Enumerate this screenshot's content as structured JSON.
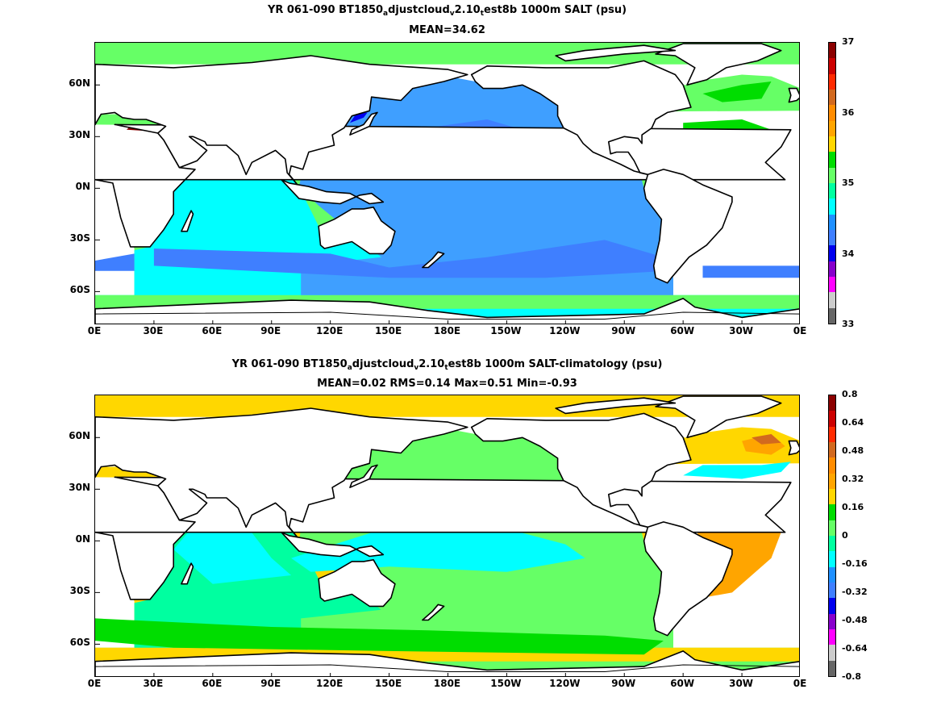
{
  "chart_data": [
    {
      "type": "heatmap",
      "title_parts": [
        "YR 061-090 BT1850",
        "a",
        "djustcloud",
        "v",
        "2.10",
        "t",
        "est8b 1000m SALT (psu)"
      ],
      "subtitle": "MEAN=34.62",
      "xtick_labels": [
        "0E",
        "30E",
        "60E",
        "90E",
        "120E",
        "150E",
        "180E",
        "150W",
        "120W",
        "90W",
        "60W",
        "30W",
        "0E"
      ],
      "ytick_labels": [
        "60N",
        "30N",
        "0N",
        "30S",
        "60S"
      ],
      "colorbar_labels": [
        "37",
        "36",
        "35",
        "34",
        "33"
      ],
      "colorbar_range": [
        33,
        37
      ],
      "colorbar_colors": [
        "#8b0000",
        "#cc0000",
        "#ff2a00",
        "#d2691e",
        "#ff8c00",
        "#ffa500",
        "#ffd700",
        "#00dd00",
        "#66ff66",
        "#00ffa0",
        "#00ffff",
        "#1e90ff",
        "#3f7fff",
        "#0000ee",
        "#8800cc",
        "#ff00ff",
        "#cccccc",
        "#666666"
      ],
      "mean": 34.62,
      "region_colors": {
        "pacific": "#3f9fff",
        "pacific_core": "#3f7fff",
        "atlantic": "#66ff66",
        "atlantic_sub": "#00dd00",
        "southern": "#00ffff",
        "south_band": "#3f7fff",
        "indian": "#00ffff",
        "arctic": "#66ff66",
        "med": "#8b0000",
        "japan": "#0000ee"
      }
    },
    {
      "type": "heatmap",
      "title_parts": [
        "YR 061-090 BT1850",
        "a",
        "djustcloud",
        "v",
        "2.10",
        "t",
        "est8b 1000m SALT-climatology (psu)"
      ],
      "subtitle": "MEAN=0.02   RMS=0.14   Max=0.51   Min=-0.93",
      "mean": 0.02,
      "rms": 0.14,
      "max": 0.51,
      "min": -0.93,
      "xtick_labels": [
        "0E",
        "30E",
        "60E",
        "90E",
        "120E",
        "150E",
        "180E",
        "150W",
        "120W",
        "90W",
        "60W",
        "30W",
        "0E"
      ],
      "ytick_labels": [
        "60N",
        "30N",
        "0N",
        "30S",
        "60S"
      ],
      "colorbar_labels": [
        "0.8",
        "0.64",
        "0.48",
        "0.32",
        "0.16",
        "0",
        "-0.16",
        "-0.32",
        "-0.48",
        "-0.64",
        "-0.8"
      ],
      "colorbar_range": [
        -0.8,
        0.8
      ],
      "colorbar_colors": [
        "#8b0000",
        "#cc0000",
        "#ff2a00",
        "#d2691e",
        "#ff8c00",
        "#ffa500",
        "#ffd700",
        "#00dd00",
        "#66ff66",
        "#00ffa0",
        "#00ffff",
        "#1e90ff",
        "#3f7fff",
        "#0000ee",
        "#8800cc",
        "#ff00ff",
        "#cccccc",
        "#666666"
      ],
      "region_colors": {
        "pacific": "#66ff66",
        "pacific_core": "#00ffff",
        "atlantic": "#ffd700",
        "atlantic_sub": "#ffa500",
        "southern": "#66ff66",
        "south_band": "#00dd00",
        "indian": "#00ffa0",
        "arctic": "#ffd700",
        "arabian": "#3f7fff",
        "labrador": "#d2691e"
      }
    }
  ]
}
